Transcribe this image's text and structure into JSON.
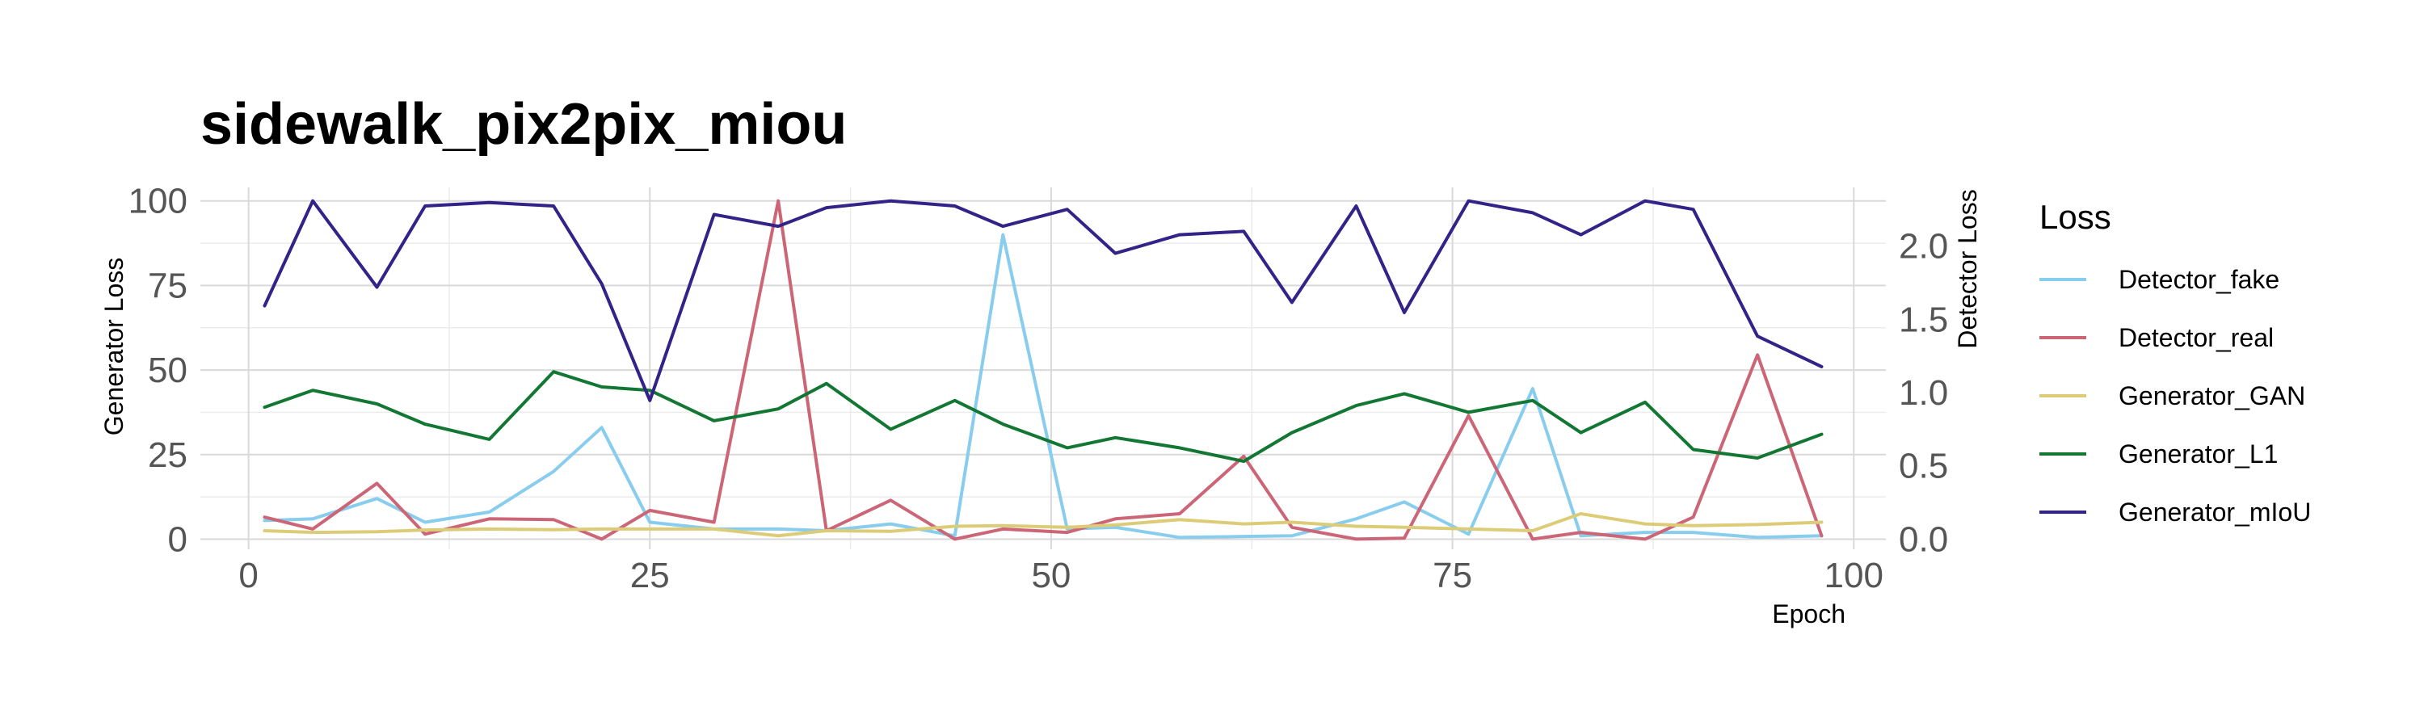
{
  "chart_data": {
    "type": "line",
    "title": "sidewalk_pix2pix_miou",
    "xlabel": "Epoch",
    "ylabel": "Generator Loss",
    "y2label": "Detector Loss",
    "xlim": [
      -3,
      102
    ],
    "ylim": [
      -3,
      104
    ],
    "y2lim": [
      -0.0692,
      2.4
    ],
    "xticks": [
      0,
      25,
      50,
      75,
      100
    ],
    "yticks": [
      0,
      25,
      50,
      75,
      100
    ],
    "y2ticks": [
      0.0,
      0.5,
      1.0,
      1.5,
      2.0
    ],
    "y2tick_labels": [
      "0.0",
      "0.5",
      "1.0",
      "1.5",
      "2.0"
    ],
    "grid": true,
    "legend": {
      "title": "Loss",
      "position": "right"
    },
    "x": [
      1,
      4,
      8,
      11,
      15,
      19,
      22,
      25,
      29,
      33,
      36,
      40,
      44,
      47,
      51,
      54,
      58,
      62,
      65,
      69,
      72,
      76,
      80,
      83,
      87,
      90,
      94,
      98
    ],
    "series": [
      {
        "name": "Detector_fake",
        "color": "#88ccee",
        "values": [
          5.5,
          6,
          12,
          5,
          8,
          20,
          33,
          5,
          3,
          3,
          2.5,
          4.5,
          1,
          90,
          3,
          3.5,
          0.5,
          0.8,
          1,
          6,
          11,
          1.5,
          44.5,
          1,
          2,
          2,
          0.5,
          1
        ]
      },
      {
        "name": "Detector_real",
        "color": "#cc6677",
        "values": [
          6.5,
          3,
          16.5,
          1.5,
          6,
          5.8,
          0,
          8.5,
          5,
          100,
          2.5,
          11.5,
          0,
          3,
          2,
          6,
          7.5,
          24.5,
          3.5,
          0,
          0.3,
          36.5,
          0,
          2,
          0,
          6.5,
          54.5,
          1
        ]
      },
      {
        "name": "Generator_GAN",
        "color": "#ddcc77",
        "values": [
          2.5,
          2,
          2.2,
          2.7,
          3,
          2.8,
          3,
          3,
          3,
          1,
          2.5,
          2.3,
          3.8,
          4,
          3.5,
          4.2,
          5.8,
          4.5,
          5,
          3.8,
          3.5,
          3,
          2.5,
          7.5,
          4.5,
          4,
          4.3,
          5
        ]
      },
      {
        "name": "Generator_L1",
        "color": "#117733",
        "values": [
          39,
          44,
          40,
          34,
          29.5,
          49.5,
          45,
          44,
          35,
          38.5,
          46,
          32.5,
          41,
          34,
          27,
          30,
          27,
          23,
          31.5,
          39.5,
          43,
          37.5,
          41,
          31.5,
          40.5,
          26.5,
          24,
          31
        ]
      },
      {
        "name": "Generator_mIoU",
        "color": "#332288",
        "values": [
          69,
          100,
          74.5,
          98.5,
          99.5,
          98.5,
          75.5,
          41,
          96,
          92.5,
          98,
          100,
          98.5,
          92.5,
          97.5,
          84.5,
          90,
          91,
          70,
          98.5,
          67,
          100,
          96.5,
          90,
          100,
          97.5,
          60,
          51
        ]
      }
    ]
  }
}
